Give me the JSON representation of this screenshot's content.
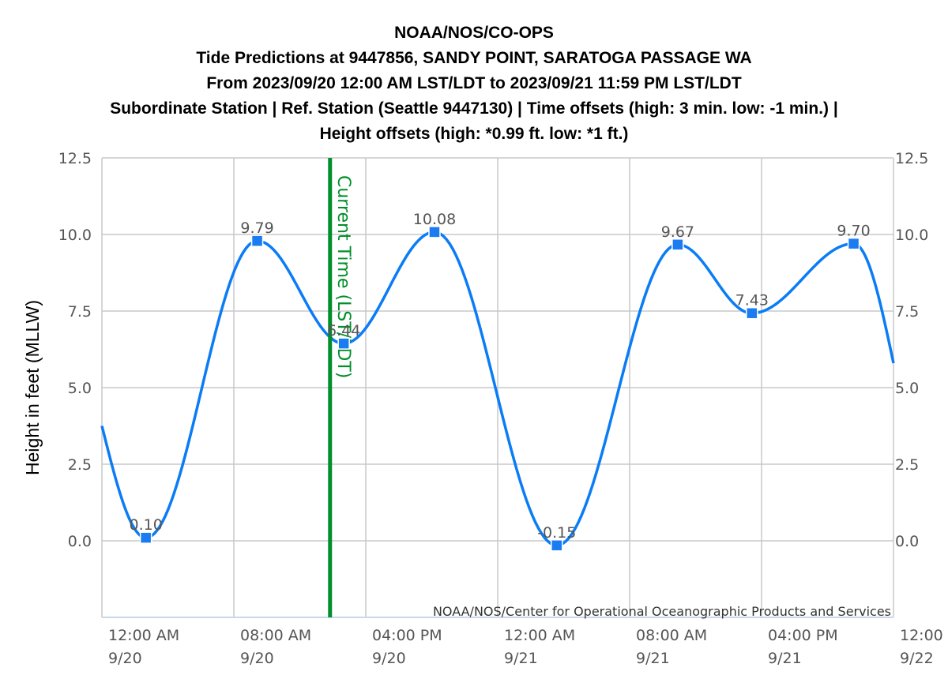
{
  "title_lines": [
    "NOAA/NOS/CO-OPS",
    "Tide Predictions at 9447856, SANDY POINT, SARATOGA PASSAGE WA",
    "From 2023/09/20 12:00 AM LST/LDT to 2023/09/21 11:59 PM LST/LDT",
    "Subordinate Station | Ref. Station (Seattle 9447130) | Time offsets (high: 3 min. low: -1 min.) |",
    "Height offsets (high: *0.99 ft. low: *1 ft.)"
  ],
  "colors": {
    "series": "#0a7cf5",
    "marker": "#1a7cf0",
    "current_time": "#008f2a",
    "grid": "#c8c8c8",
    "axis_text": "#555555"
  },
  "chart_data": {
    "type": "line",
    "ylabel": "Height in feet (MLLW)",
    "ylim": [
      -2.5,
      12.5
    ],
    "xlim": [
      "2023-09-20 00:00",
      "2023-09-22 00:00"
    ],
    "grid": true,
    "y_ticks": [
      "12.5",
      "10.0",
      "7.5",
      "5.0",
      "2.5",
      "0.0"
    ],
    "x_ticks": [
      {
        "time": "12:00 AM",
        "date": "9/20"
      },
      {
        "time": "08:00 AM",
        "date": "9/20"
      },
      {
        "time": "04:00 PM",
        "date": "9/20"
      },
      {
        "time": "12:00 AM",
        "date": "9/21"
      },
      {
        "time": "08:00 AM",
        "date": "9/21"
      },
      {
        "time": "04:00 PM",
        "date": "9/21"
      },
      {
        "time": "12:00",
        "date": "9/22"
      }
    ],
    "extrema": [
      {
        "time": "2023-09-20 02:40",
        "value": 0.1,
        "label": "0.10"
      },
      {
        "time": "2023-09-20 09:25",
        "value": 9.79,
        "label": "9.79"
      },
      {
        "time": "2023-09-20 14:40",
        "value": 6.44,
        "label": "6.44"
      },
      {
        "time": "2023-09-20 20:10",
        "value": 10.08,
        "label": "10.08"
      },
      {
        "time": "2023-09-21 03:35",
        "value": -0.15,
        "label": "-0.15"
      },
      {
        "time": "2023-09-21 10:55",
        "value": 9.67,
        "label": "9.67"
      },
      {
        "time": "2023-09-21 15:25",
        "value": 7.43,
        "label": "7.43"
      },
      {
        "time": "2023-09-21 21:35",
        "value": 9.7,
        "label": "9.70"
      }
    ],
    "series_start": {
      "time": "2023-09-20 00:00",
      "value": 3.75
    },
    "series_end": {
      "time": "2023-09-22 00:00",
      "value": 5.8
    },
    "current_time": {
      "time": "2023-09-20 13:50",
      "label": "Current Time (LST/LDT)"
    },
    "credit": "NOAA/NOS/Center for Operational Oceanographic Products and Services"
  }
}
